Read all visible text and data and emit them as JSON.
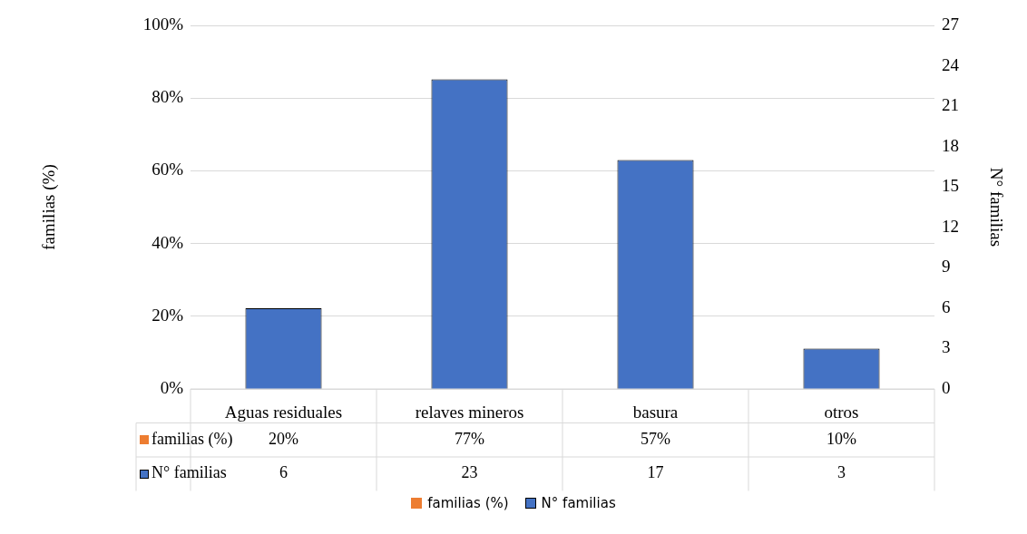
{
  "chart_data": {
    "type": "bar",
    "ylabel": "familias (%)",
    "y2label": "N° familias",
    "categories": [
      "Aguas residuales",
      "relaves mineros",
      "basura",
      "otros"
    ],
    "series": [
      {
        "name": "familias (%)",
        "color": "#ed7d31",
        "values": [
          null,
          null,
          null,
          null
        ],
        "value_labels": [
          "20%",
          "77%",
          "57%",
          "10%"
        ]
      },
      {
        "name": "N° familias",
        "color": "#4472c4",
        "values": [
          6,
          23,
          17,
          3
        ],
        "axis": "y2",
        "value_labels": [
          "6",
          "23",
          "17",
          "3"
        ]
      }
    ],
    "ylim": [
      0,
      100
    ],
    "yticks": [
      {
        "value": 0,
        "label": "0%"
      },
      {
        "value": 20,
        "label": "20%"
      },
      {
        "value": 40,
        "label": "40%"
      },
      {
        "value": 60,
        "label": "60%"
      },
      {
        "value": 80,
        "label": "80%"
      },
      {
        "value": 100,
        "label": "100%"
      }
    ],
    "y2lim": [
      0,
      27
    ],
    "y2ticks": [
      0,
      3,
      6,
      9,
      12,
      15,
      18,
      21,
      24,
      27
    ],
    "grid": "y",
    "legend": "bottom"
  }
}
